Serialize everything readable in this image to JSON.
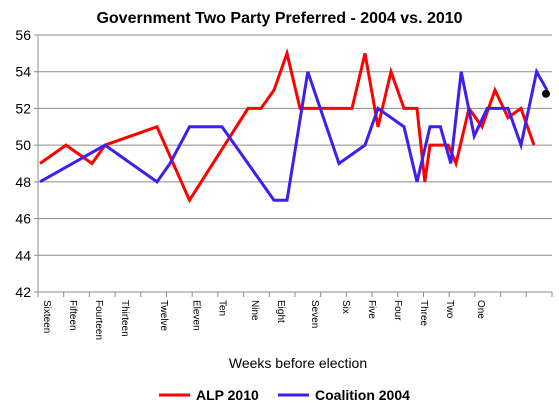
{
  "chart_data": {
    "type": "line",
    "title": "Government Two Party Preferred - 2004 vs. 2010",
    "xlabel": "Weeks before election",
    "ylabel": "",
    "ylim": [
      42,
      56
    ],
    "yticks": [
      42,
      44,
      46,
      48,
      50,
      52,
      54,
      56
    ],
    "xlim": [
      0,
      19
    ],
    "xtick_labels": [
      {
        "label": "Sixteen",
        "x": 0
      },
      {
        "label": "Fifteen",
        "x": 1
      },
      {
        "label": "Fourteen",
        "x": 2
      },
      {
        "label": "Thirteen",
        "x": 3
      },
      {
        "label": "Twelve",
        "x": 4.5
      },
      {
        "label": "Eleven",
        "x": 5.75
      },
      {
        "label": "Ten",
        "x": 6.75
      },
      {
        "label": "Nine",
        "x": 8
      },
      {
        "label": "Eight",
        "x": 9
      },
      {
        "label": "Seven",
        "x": 10.3
      },
      {
        "label": "Six",
        "x": 11.5
      },
      {
        "label": "Five",
        "x": 12.5
      },
      {
        "label": "Four",
        "x": 13.5
      },
      {
        "label": "Three",
        "x": 14.5
      },
      {
        "label": "Two",
        "x": 15.5
      },
      {
        "label": "One",
        "x": 16.7
      }
    ],
    "gridlines": "horizontal",
    "legend_position": "bottom",
    "series": [
      {
        "name": "ALP 2010",
        "color": "#ff0000",
        "x": [
          0,
          1,
          2,
          2.5,
          4.5,
          5.75,
          8,
          8.5,
          9,
          9.5,
          10,
          11,
          12,
          12.5,
          13,
          13.5,
          14,
          14.5,
          14.8,
          15,
          15.3,
          15.7,
          16,
          16.5,
          17,
          17.5,
          18,
          18.5,
          19
        ],
        "y": [
          49,
          50,
          49,
          50,
          51,
          47,
          52,
          52,
          53,
          55,
          52,
          52,
          52,
          55,
          51,
          54,
          52,
          52,
          48,
          50,
          50,
          50,
          49,
          52,
          51,
          53,
          51.5,
          52,
          50
        ]
      },
      {
        "name": "Coalition 2004",
        "color": "#3f1ff0",
        "x": [
          0,
          2.5,
          4.5,
          5,
          5.75,
          7,
          9,
          9.5,
          10.3,
          11.5,
          12.5,
          13,
          14,
          14.5,
          15,
          15.4,
          15.8,
          16.2,
          16.7,
          17.2,
          17.6,
          18,
          18.5,
          19.1,
          19.5
        ],
        "y": [
          48,
          50,
          48,
          49,
          51,
          51,
          47,
          47,
          54,
          49,
          50,
          52,
          51,
          48,
          51,
          51,
          49,
          54,
          50.5,
          52,
          52,
          52,
          50,
          54,
          53
        ]
      }
    ],
    "end_marker": {
      "x": 20.2,
      "y": 52.8,
      "color": "#000000"
    }
  }
}
